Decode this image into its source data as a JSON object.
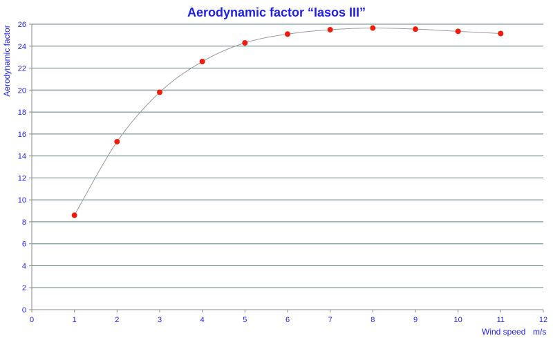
{
  "chart_data": {
    "type": "line",
    "title": "Aerodynamic factor “Iasos III”",
    "xlabel": "Wind speed",
    "xunit": "m/s",
    "ylabel": "Aerodynamic factor",
    "xlim": [
      0,
      12
    ],
    "ylim": [
      0,
      26
    ],
    "xticks": [
      0,
      1,
      2,
      3,
      4,
      5,
      6,
      7,
      8,
      9,
      10,
      11,
      12
    ],
    "yticks": [
      0,
      2,
      4,
      6,
      8,
      10,
      12,
      14,
      16,
      18,
      20,
      22,
      24,
      26
    ],
    "grid": "horizontal",
    "series": [
      {
        "x": [
          1,
          2,
          3,
          4,
          5,
          6,
          7,
          8,
          9,
          10,
          11
        ],
        "values": [
          8.6,
          15.3,
          19.8,
          22.6,
          24.3,
          25.1,
          25.5,
          25.65,
          25.55,
          25.35,
          25.15
        ]
      }
    ],
    "colors": {
      "points": "#ee1c0c",
      "curve": "#9a9a9a",
      "text": "#1f1fe6",
      "grid": "#5f7f7f"
    }
  }
}
